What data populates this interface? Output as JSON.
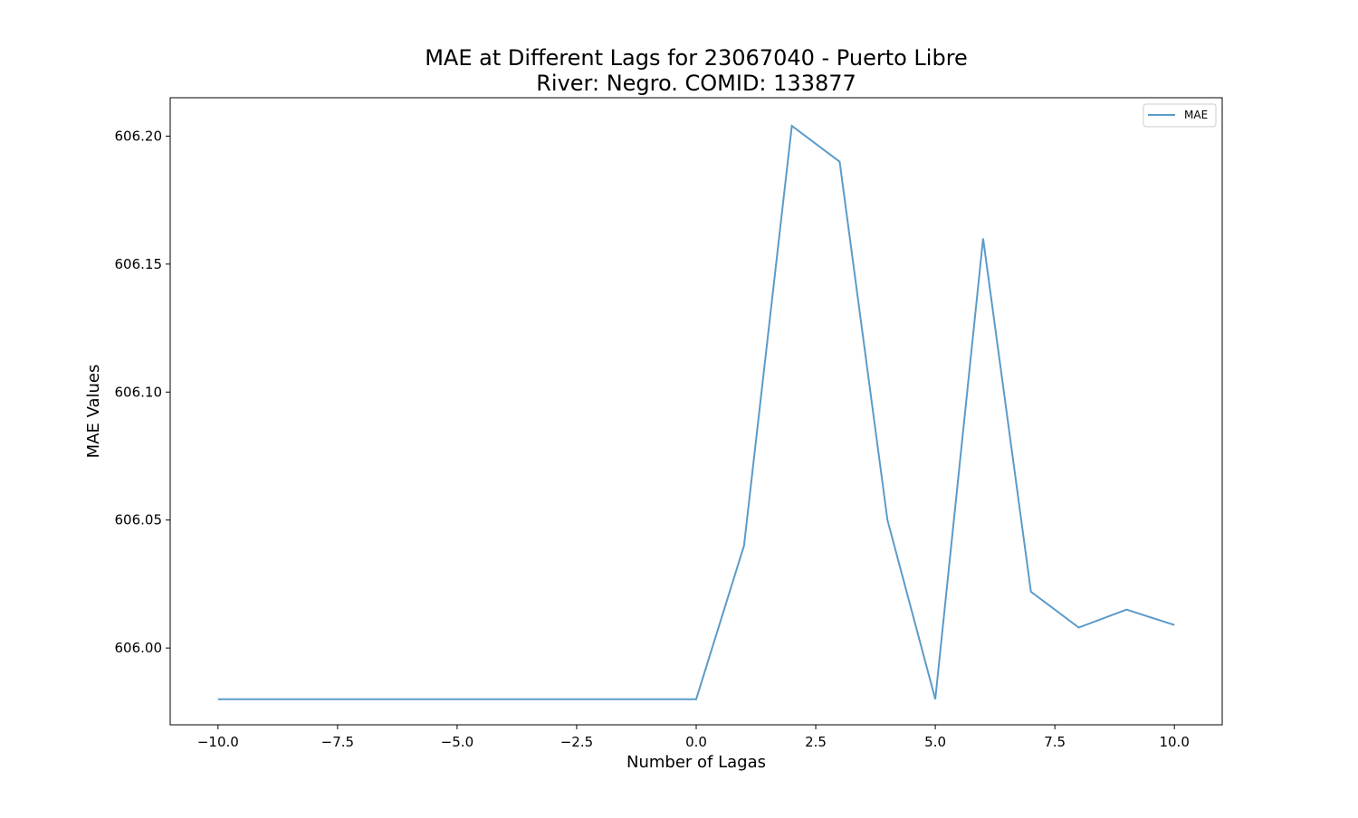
{
  "chart_data": {
    "type": "line",
    "title": "MAE at Different Lags for 23067040 - Puerto Libre",
    "subtitle": "River: Negro. COMID: 133877",
    "xlabel": "Number of Lagas",
    "ylabel": "MAE Values",
    "xlim": [
      -11,
      11
    ],
    "ylim": [
      605.97,
      606.215
    ],
    "xticks": [
      -10.0,
      -7.5,
      -5.0,
      -2.5,
      0.0,
      2.5,
      5.0,
      7.5,
      10.0
    ],
    "xtick_labels": [
      "−10.0",
      "−7.5",
      "−5.0",
      "−2.5",
      "0.0",
      "2.5",
      "5.0",
      "7.5",
      "10.0"
    ],
    "yticks": [
      606.0,
      606.05,
      606.1,
      606.15,
      606.2
    ],
    "ytick_labels": [
      "606.00",
      "606.05",
      "606.10",
      "606.15",
      "606.20"
    ],
    "grid": false,
    "legend": {
      "position": "top-right",
      "entries": [
        "MAE"
      ]
    },
    "series": [
      {
        "name": "MAE",
        "color": "#5b9bc9",
        "x": [
          -10,
          -9,
          -8,
          -7,
          -6,
          -5,
          -4,
          -3,
          -2,
          -1,
          0,
          1,
          2,
          3,
          4,
          5,
          6,
          7,
          8,
          9,
          10
        ],
        "y": [
          605.98,
          605.98,
          605.98,
          605.98,
          605.98,
          605.98,
          605.98,
          605.98,
          605.98,
          605.98,
          605.98,
          606.04,
          606.204,
          606.19,
          606.05,
          605.98,
          606.16,
          606.022,
          606.008,
          606.015,
          606.009
        ]
      }
    ]
  }
}
